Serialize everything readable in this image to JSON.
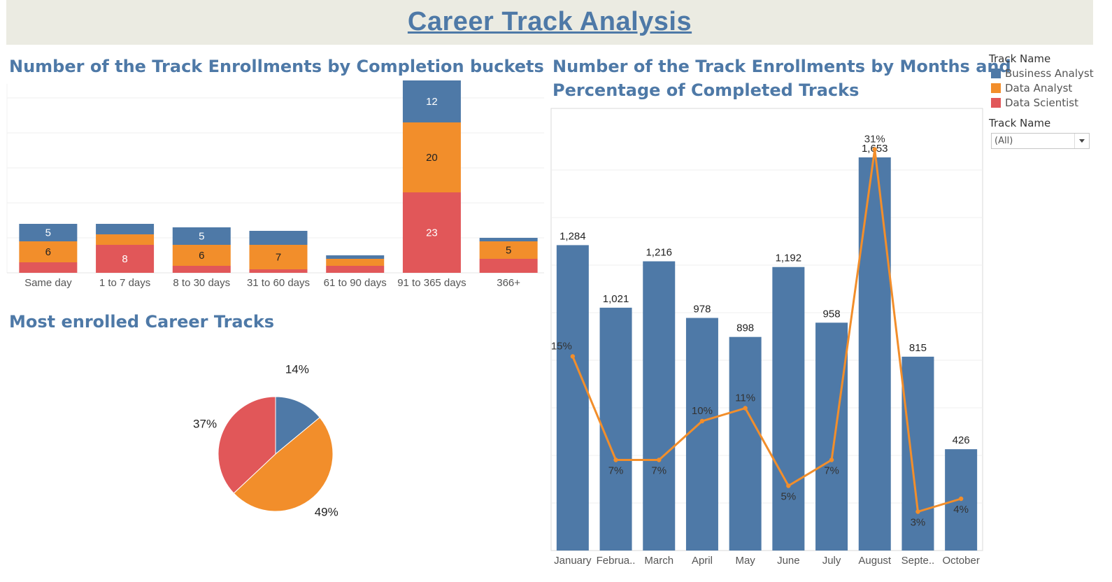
{
  "header": {
    "title": "Career Track Analysis"
  },
  "colors": {
    "business_analyst": "#4e79a7",
    "data_analyst": "#f28e2b",
    "data_scientist": "#e15759",
    "title": "#4e79a7"
  },
  "sections": {
    "completion_title": "Number of the Track Enrollments by Completion buckets",
    "pie_title": "Most enrolled Career Tracks",
    "monthly_title_line1": "Number of the Track Enrollments by Months and",
    "monthly_title_line2": "Percentage of Completed Tracks"
  },
  "legend": {
    "title": "Track Name",
    "items": [
      "Business Analyst",
      "Data Analyst",
      "Data Scientist"
    ]
  },
  "filter": {
    "title": "Track Name",
    "value": "(All)"
  },
  "chart_data": [
    {
      "type": "bar",
      "stacked": true,
      "categories": [
        "Same day",
        "1 to 7 days",
        "8 to 30 days",
        "31 to 60 days",
        "61 to 90 days",
        "91 to 365 days",
        "366+"
      ],
      "series": [
        {
          "name": "Data Scientist",
          "values": [
            3,
            8,
            2,
            1,
            2,
            23,
            4
          ]
        },
        {
          "name": "Data Analyst",
          "values": [
            6,
            3,
            6,
            7,
            2,
            20,
            5
          ]
        },
        {
          "name": "Business Analyst",
          "values": [
            5,
            3,
            5,
            4,
            1,
            12,
            1
          ]
        }
      ],
      "data_labels": [
        [
          "",
          "8",
          "",
          "",
          "",
          "23",
          ""
        ],
        [
          "6",
          "",
          "6",
          "7",
          "",
          "20",
          "5"
        ],
        [
          "5",
          "",
          "5",
          "",
          "",
          "12",
          ""
        ]
      ],
      "ylim": [
        0,
        56
      ],
      "grid": true
    },
    {
      "type": "pie",
      "labels": [
        "Business Analyst",
        "Data Analyst",
        "Data Scientist"
      ],
      "values": [
        14,
        49,
        37
      ],
      "value_labels": [
        "14%",
        "49%",
        "37%"
      ]
    },
    {
      "type": "bar",
      "categories": [
        "January",
        "Februa..",
        "March",
        "April",
        "May",
        "June",
        "July",
        "August",
        "Septe..",
        "October"
      ],
      "values": [
        1284,
        1021,
        1216,
        978,
        898,
        1192,
        958,
        1653,
        815,
        426
      ],
      "value_labels": [
        "1,284",
        "1,021",
        "1,216",
        "978",
        "898",
        "1,192",
        "958",
        "1,653",
        "815",
        "426"
      ],
      "ylim": [
        0,
        1800
      ],
      "grid": true,
      "line_series": {
        "values": [
          15,
          7,
          7,
          10,
          11,
          5,
          7,
          31,
          3,
          4
        ],
        "labels": [
          "15%",
          "7%",
          "7%",
          "10%",
          "11%",
          "5%",
          "7%",
          "31%",
          "3%",
          "4%"
        ],
        "ylim": [
          0,
          32
        ]
      }
    }
  ]
}
